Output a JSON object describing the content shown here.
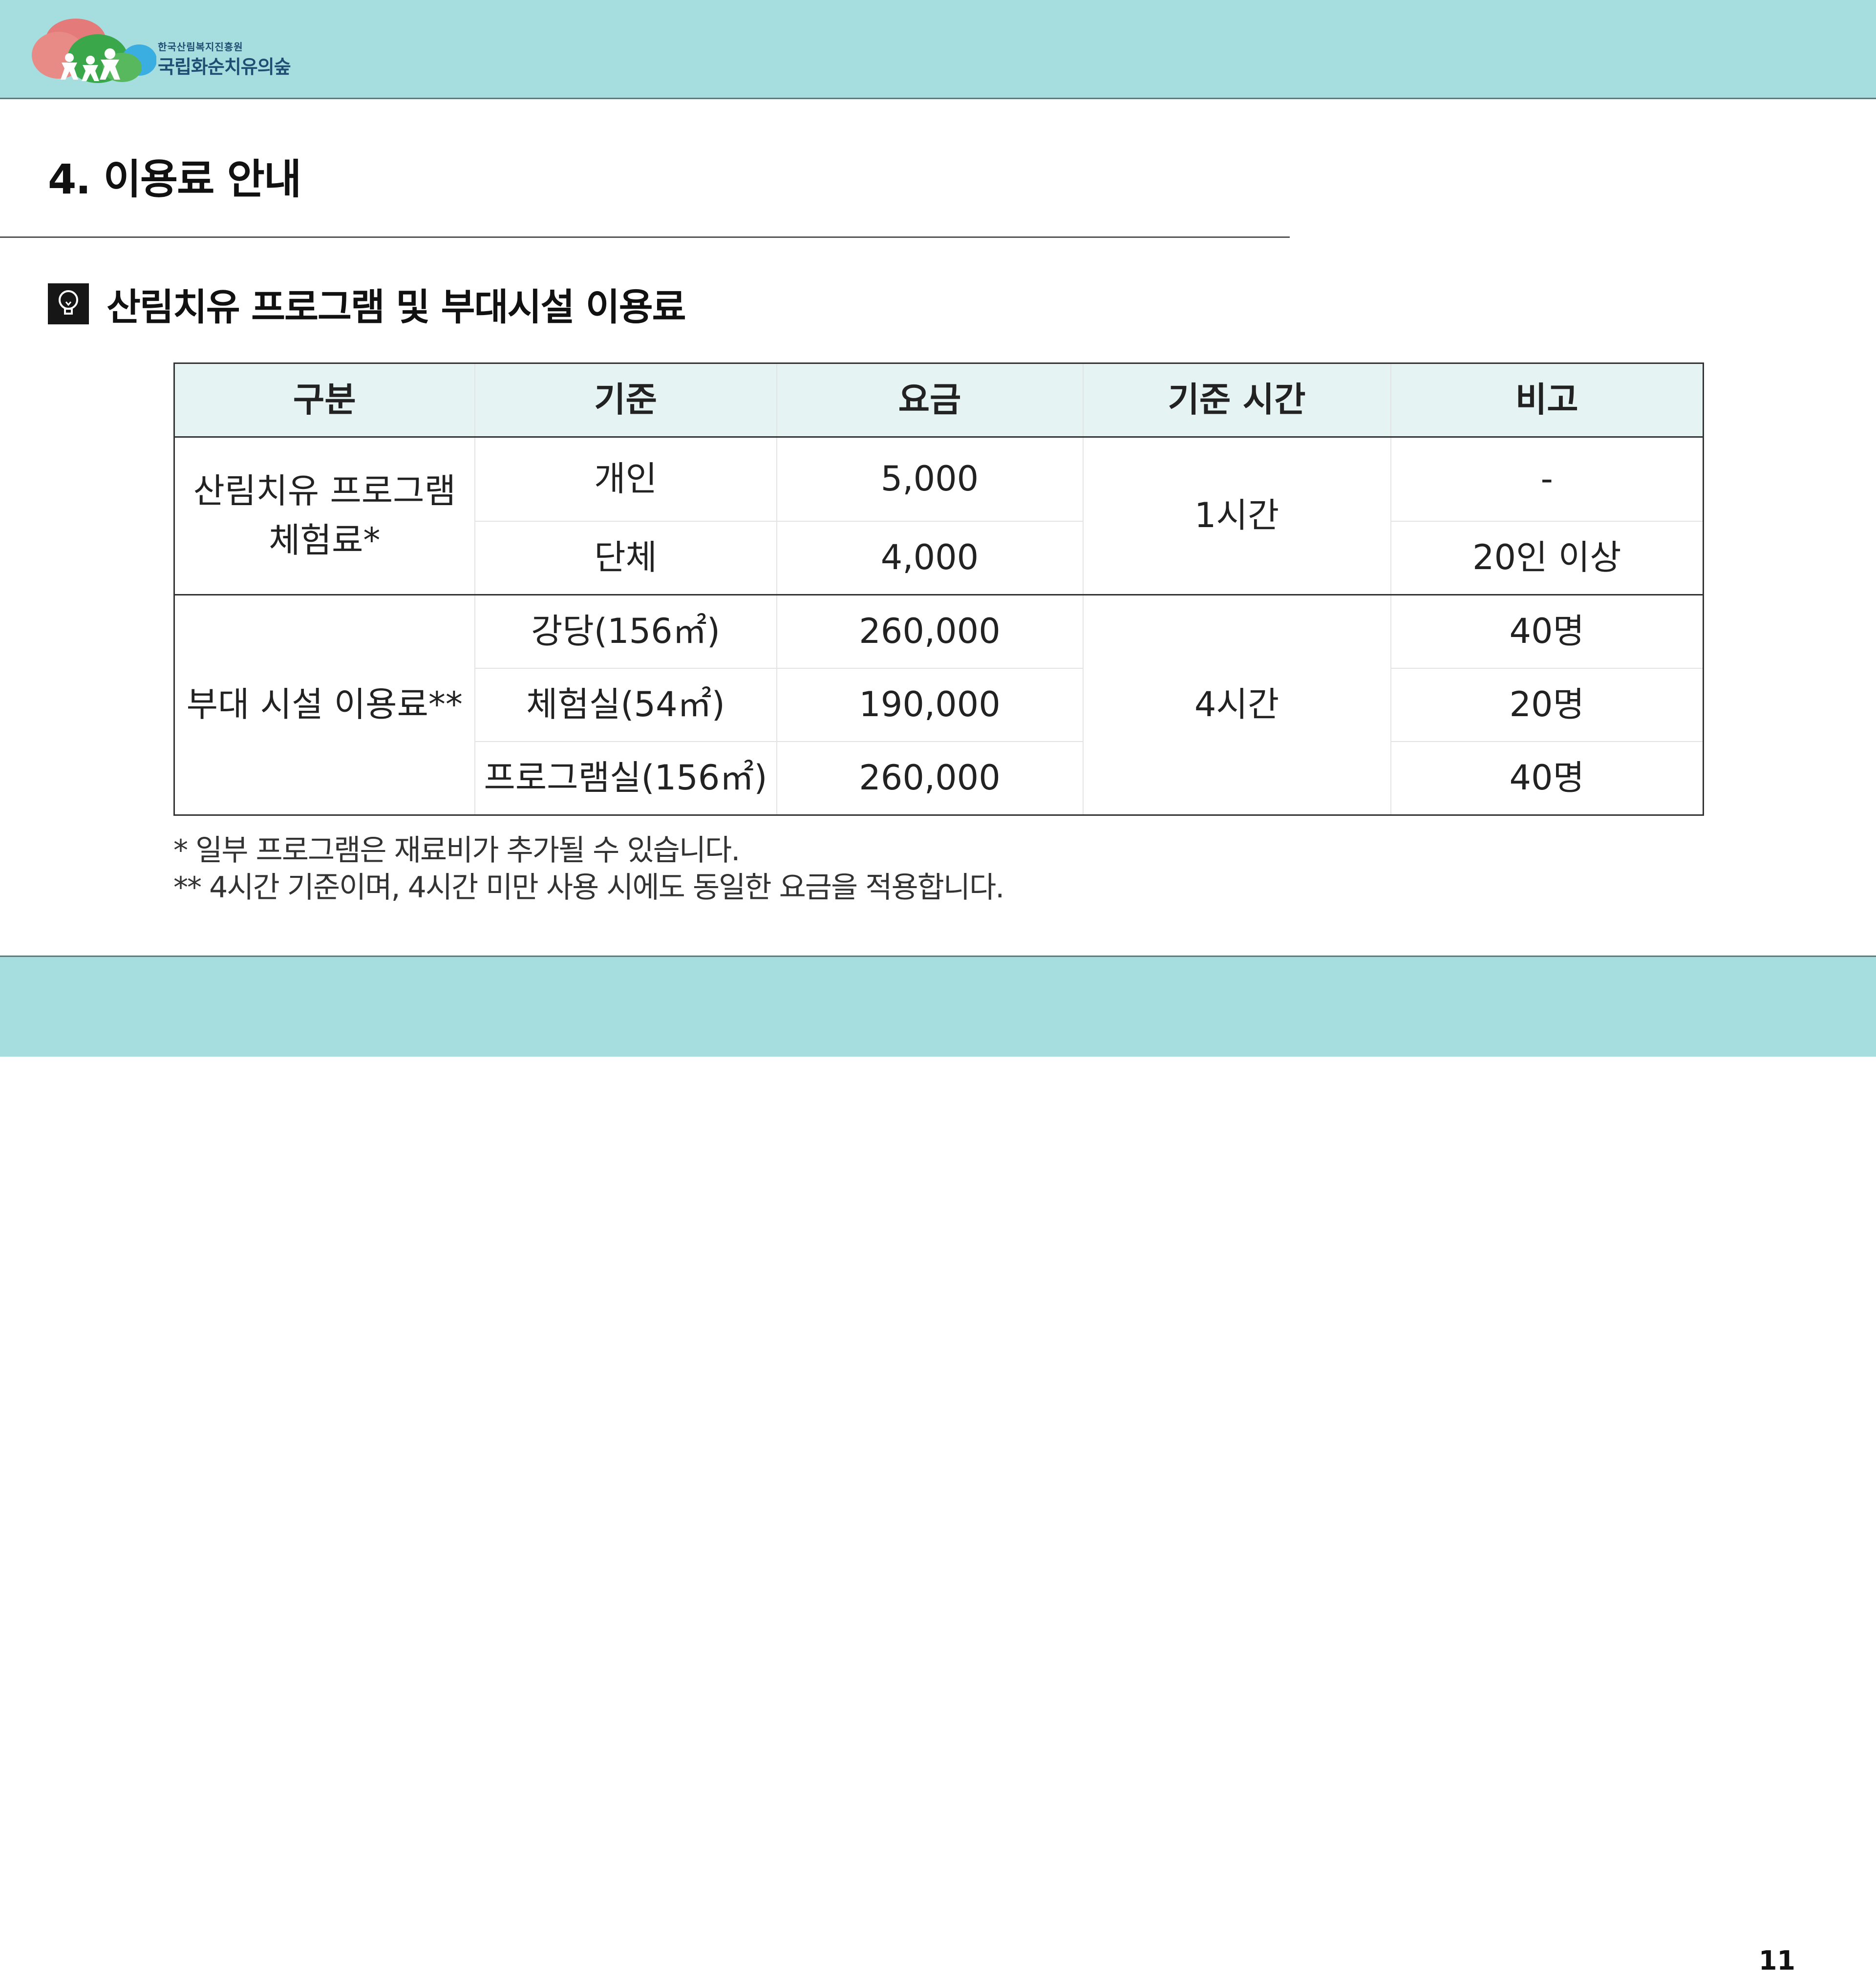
{
  "header": {
    "org_sub": "한국산림복지진흥원",
    "org_main": "국립화순치유의숲",
    "brand_colors": [
      "#e47a7a",
      "#3aa84a",
      "#3aaee0",
      "#a6dddf"
    ]
  },
  "page_title": "4. 이용료 안내",
  "section": {
    "icon": "lightbulb-icon",
    "title": "산림치유 프로그램 및 부대시설 이용료"
  },
  "table": {
    "headers": [
      "구분",
      "기준",
      "요금",
      "기준 시간",
      "비고"
    ],
    "groups": [
      {
        "category_line1": "산림치유 프로그램",
        "category_line2": "체험료*",
        "duration": "1시간",
        "rows": [
          {
            "basis": "개인",
            "fee": "5,000",
            "note": "-"
          },
          {
            "basis": "단체",
            "fee": "4,000",
            "note": "20인 이상"
          }
        ]
      },
      {
        "category": "부대 시설 이용료**",
        "duration": "4시간",
        "rows": [
          {
            "basis": "강당(156㎡)",
            "fee": "260,000",
            "note": "40명"
          },
          {
            "basis": "체험실(54㎡)",
            "fee": "190,000",
            "note": "20명"
          },
          {
            "basis": "프로그램실(156㎡)",
            "fee": "260,000",
            "note": "40명"
          }
        ]
      }
    ]
  },
  "notes": [
    "* 일부 프로그램은 재료비가 추가될 수 있습니다.",
    "** 4시간 기준이며, 4시간 미만 사용 시에도 동일한 요금을 적용합니다."
  ],
  "page_number": "11"
}
